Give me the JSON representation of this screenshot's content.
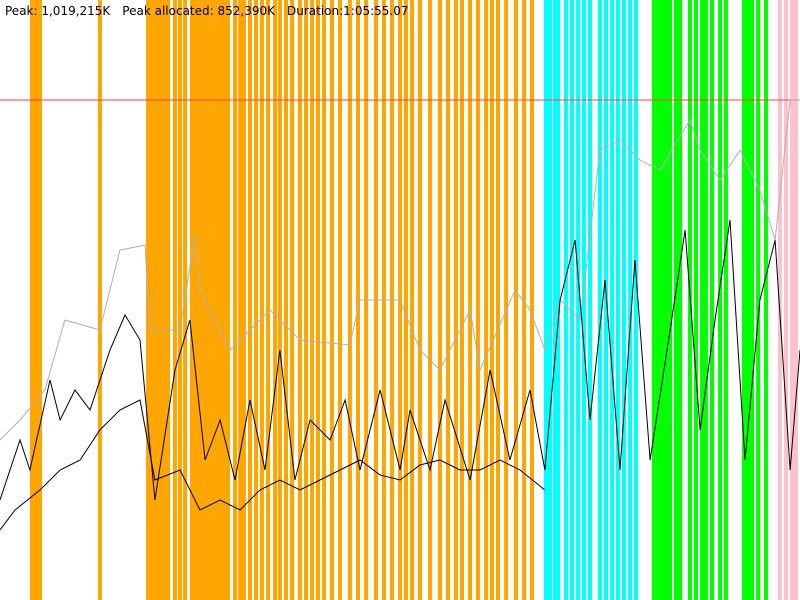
{
  "chart_data": {
    "type": "line",
    "stats": [
      "Peak: 1,019,215K",
      "Peak allocated: 852,390K",
      "Duration:1:05:55.07"
    ],
    "xlim": [
      0,
      3955.07
    ],
    "ylim": [
      0,
      1223000
    ],
    "peak_line": {
      "value": 1019215,
      "color": "#ff4040"
    },
    "events": [
      {
        "color": "#ffa500",
        "x": [
          158,
          178,
          198,
          494,
          732,
          751,
          771,
          791,
          811,
          831,
          865,
          890,
          915,
          949,
          969,
          989,
          1009,
          1028,
          1048,
          1068,
          1088,
          1107,
          1127,
          1162,
          1187,
          1206,
          1236,
          1266,
          1295,
          1325,
          1360,
          1384,
          1414,
          1444,
          1483,
          1513,
          1543,
          1572,
          1602,
          1641,
          1681,
          1730,
          1770,
          1810,
          1859,
          1898,
          1938,
          1978,
          2007,
          2037,
          2076,
          2126,
          2175,
          2215,
          2254,
          2284,
          2324,
          2363,
          2403,
          2432,
          2462,
          2502,
          2551,
          2591,
          2630
        ]
      },
      {
        "color": "#00ffff",
        "x": [
          2699,
          2719,
          2744,
          2759,
          2798,
          2828,
          2858,
          2887,
          2917,
          2966,
          2996,
          3026,
          3055,
          3085,
          3115,
          3144
        ]
      },
      {
        "color": "#00ff00",
        "x": [
          3233,
          3253,
          3273,
          3293,
          3313,
          3342,
          3362,
          3411,
          3441,
          3471,
          3490,
          3520,
          3560,
          3589,
          3678,
          3698,
          3718,
          3748,
          3787
        ]
      },
      {
        "color": "#ffc0cb",
        "x": [
          3856,
          3886,
          3916,
          3935
        ]
      }
    ],
    "series": [
      {
        "color": "#b0b0b0",
        "x": [
          0,
          99,
          222,
          321,
          494,
          593,
          717,
          742,
          890,
          964,
          989,
          1137,
          1335,
          1483,
          1730,
          1780,
          1978,
          2076,
          2175,
          2324,
          2373,
          2546,
          2620,
          2694,
          2769,
          2868,
          2966,
          3065,
          3164,
          3263,
          3411,
          3461,
          3560,
          3659,
          3757,
          3832,
          3906,
          3955
        ],
        "values": [
          326080,
          366840,
          427980,
          570640,
          550260,
          713300,
          723490,
          550260,
          550260,
          743870,
          631780,
          509500,
          591020,
          529880,
          519690,
          611400,
          611400,
          509500,
          468740,
          591020,
          468740,
          631780,
          591020,
          509500,
          611400,
          570640,
          917100,
          937480,
          896720,
          876340,
          978240,
          917100,
          855960,
          917100,
          835580,
          733680,
          1019000,
          1019000
        ]
      },
      {
        "color": "#000000",
        "x": [
          0,
          99,
          148,
          247,
          297,
          371,
          445,
          544,
          618,
          692,
          766,
          865,
          939,
          1014,
          1088,
          1162,
          1236,
          1310,
          1384,
          1458,
          1533,
          1632,
          1706,
          1780,
          1879,
          1978,
          2027,
          2126,
          2200,
          2324,
          2423,
          2521,
          2620,
          2694,
          2769,
          2843,
          2917,
          2991,
          3065,
          3139,
          3214,
          3313,
          3387,
          3461,
          3535,
          3609,
          3683,
          3757,
          3832,
          3906,
          3955
        ],
        "values": [
          203800,
          326080,
          264940,
          448360,
          366840,
          427980,
          387220,
          509500,
          580830,
          529880,
          203800,
          468740,
          570640,
          285320,
          366840,
          244560,
          407600,
          264940,
          509500,
          244560,
          366840,
          326080,
          407600,
          264940,
          427980,
          264940,
          387220,
          264940,
          407600,
          244560,
          468740,
          285320,
          427980,
          264940,
          611400,
          733680,
          366840,
          652160,
          264940,
          692920,
          285320,
          550260,
          754060,
          346460,
          570640,
          774440,
          285320,
          611400,
          733680,
          264940,
          509500
        ]
      },
      {
        "color": "#000000",
        "x": [
          0,
          74,
          198,
          297,
          396,
          494,
          593,
          692,
          766,
          890,
          989,
          1088,
          1187,
          1285,
          1384,
          1483,
          1582,
          1681,
          1780,
          1879,
          1978,
          2076,
          2175,
          2274,
          2373,
          2472,
          2571,
          2694
        ],
        "values": [
          142660,
          183420,
          224180,
          264940,
          285320,
          346460,
          387220,
          407600,
          244560,
          264940,
          183420,
          203800,
          183420,
          224180,
          244560,
          224180,
          244560,
          264940,
          285320,
          254750,
          244560,
          275130,
          285320,
          264940,
          264940,
          285320,
          264940,
          224180
        ]
      }
    ]
  }
}
